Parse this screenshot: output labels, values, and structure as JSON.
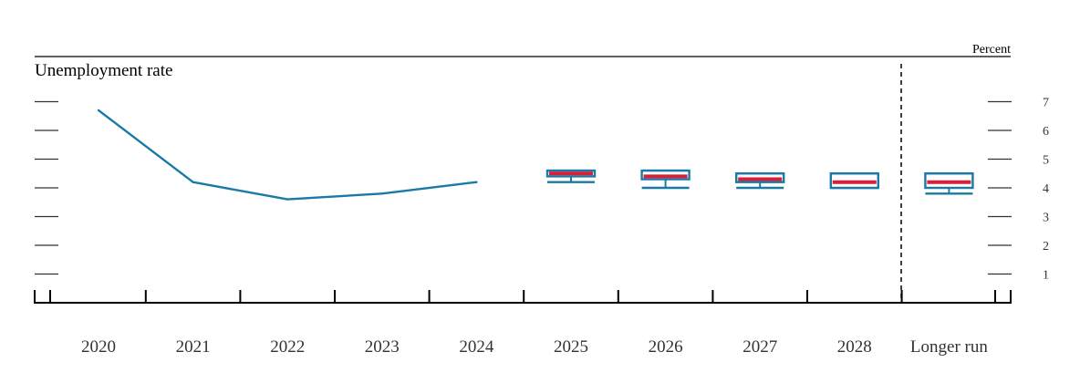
{
  "chart_data": {
    "type": "line",
    "title": "Unemployment rate",
    "unit_label": "Percent",
    "categories": [
      "2020",
      "2021",
      "2022",
      "2023",
      "2024",
      "2025",
      "2026",
      "2027",
      "2028",
      "Longer run"
    ],
    "ylim": [
      0,
      8
    ],
    "y_ticks": [
      "1",
      "2",
      "3",
      "4",
      "5",
      "6",
      "7"
    ],
    "history": {
      "x": [
        "2020",
        "2021",
        "2022",
        "2023",
        "2024"
      ],
      "values": [
        6.7,
        4.2,
        3.6,
        3.8,
        4.2
      ]
    },
    "projections": [
      {
        "x": "2025",
        "range_low": 4.2,
        "central_low": 4.4,
        "central_high": 4.6,
        "range_high": 4.6,
        "median": 4.5
      },
      {
        "x": "2026",
        "range_low": 4.0,
        "central_low": 4.3,
        "central_high": 4.6,
        "range_high": 4.6,
        "median": 4.4
      },
      {
        "x": "2027",
        "range_low": 4.0,
        "central_low": 4.2,
        "central_high": 4.5,
        "range_high": 4.5,
        "median": 4.3
      },
      {
        "x": "2028",
        "range_low": 4.0,
        "central_low": 4.0,
        "central_high": 4.5,
        "range_high": 4.5,
        "median": 4.2
      },
      {
        "x": "Longer run",
        "range_low": 3.8,
        "central_low": 4.0,
        "central_high": 4.5,
        "range_high": 4.5,
        "median": 4.2
      }
    ],
    "colors": {
      "history_line": "#1a7aa6",
      "box": "#1a7aa6",
      "median": "#d81f3a",
      "axis": "#000000",
      "tick": "#333333"
    }
  }
}
